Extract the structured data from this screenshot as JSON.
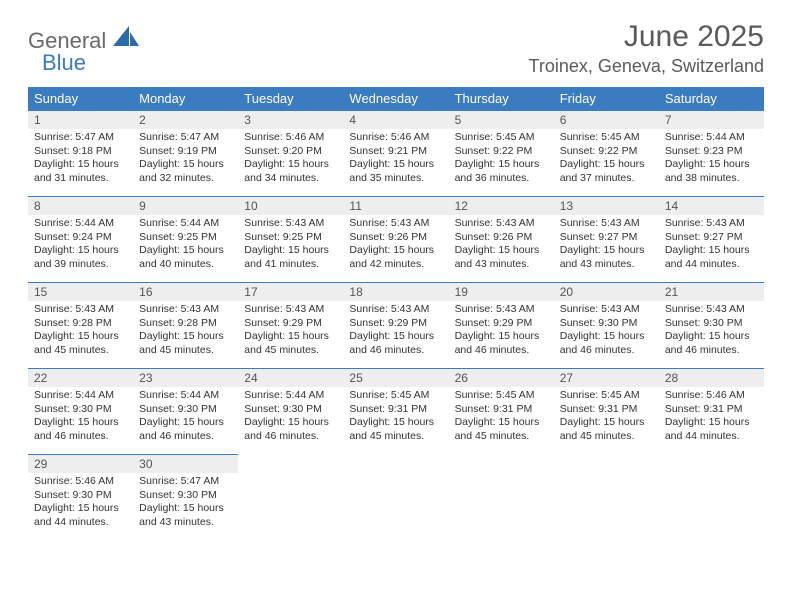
{
  "brand": {
    "word1": "General",
    "word2": "Blue"
  },
  "title": "June 2025",
  "location": "Troinex, Geneva, Switzerland",
  "colors": {
    "header_bg": "#3b7bbf",
    "header_text": "#ffffff",
    "daynum_bg": "#eeeeee",
    "border": "#3b7bbf",
    "text": "#333333",
    "title_text": "#5a5a5a"
  },
  "weekdays": [
    "Sunday",
    "Monday",
    "Tuesday",
    "Wednesday",
    "Thursday",
    "Friday",
    "Saturday"
  ],
  "days": [
    {
      "num": "1",
      "sunrise": "Sunrise: 5:47 AM",
      "sunset": "Sunset: 9:18 PM",
      "day1": "Daylight: 15 hours",
      "day2": "and 31 minutes."
    },
    {
      "num": "2",
      "sunrise": "Sunrise: 5:47 AM",
      "sunset": "Sunset: 9:19 PM",
      "day1": "Daylight: 15 hours",
      "day2": "and 32 minutes."
    },
    {
      "num": "3",
      "sunrise": "Sunrise: 5:46 AM",
      "sunset": "Sunset: 9:20 PM",
      "day1": "Daylight: 15 hours",
      "day2": "and 34 minutes."
    },
    {
      "num": "4",
      "sunrise": "Sunrise: 5:46 AM",
      "sunset": "Sunset: 9:21 PM",
      "day1": "Daylight: 15 hours",
      "day2": "and 35 minutes."
    },
    {
      "num": "5",
      "sunrise": "Sunrise: 5:45 AM",
      "sunset": "Sunset: 9:22 PM",
      "day1": "Daylight: 15 hours",
      "day2": "and 36 minutes."
    },
    {
      "num": "6",
      "sunrise": "Sunrise: 5:45 AM",
      "sunset": "Sunset: 9:22 PM",
      "day1": "Daylight: 15 hours",
      "day2": "and 37 minutes."
    },
    {
      "num": "7",
      "sunrise": "Sunrise: 5:44 AM",
      "sunset": "Sunset: 9:23 PM",
      "day1": "Daylight: 15 hours",
      "day2": "and 38 minutes."
    },
    {
      "num": "8",
      "sunrise": "Sunrise: 5:44 AM",
      "sunset": "Sunset: 9:24 PM",
      "day1": "Daylight: 15 hours",
      "day2": "and 39 minutes."
    },
    {
      "num": "9",
      "sunrise": "Sunrise: 5:44 AM",
      "sunset": "Sunset: 9:25 PM",
      "day1": "Daylight: 15 hours",
      "day2": "and 40 minutes."
    },
    {
      "num": "10",
      "sunrise": "Sunrise: 5:43 AM",
      "sunset": "Sunset: 9:25 PM",
      "day1": "Daylight: 15 hours",
      "day2": "and 41 minutes."
    },
    {
      "num": "11",
      "sunrise": "Sunrise: 5:43 AM",
      "sunset": "Sunset: 9:26 PM",
      "day1": "Daylight: 15 hours",
      "day2": "and 42 minutes."
    },
    {
      "num": "12",
      "sunrise": "Sunrise: 5:43 AM",
      "sunset": "Sunset: 9:26 PM",
      "day1": "Daylight: 15 hours",
      "day2": "and 43 minutes."
    },
    {
      "num": "13",
      "sunrise": "Sunrise: 5:43 AM",
      "sunset": "Sunset: 9:27 PM",
      "day1": "Daylight: 15 hours",
      "day2": "and 43 minutes."
    },
    {
      "num": "14",
      "sunrise": "Sunrise: 5:43 AM",
      "sunset": "Sunset: 9:27 PM",
      "day1": "Daylight: 15 hours",
      "day2": "and 44 minutes."
    },
    {
      "num": "15",
      "sunrise": "Sunrise: 5:43 AM",
      "sunset": "Sunset: 9:28 PM",
      "day1": "Daylight: 15 hours",
      "day2": "and 45 minutes."
    },
    {
      "num": "16",
      "sunrise": "Sunrise: 5:43 AM",
      "sunset": "Sunset: 9:28 PM",
      "day1": "Daylight: 15 hours",
      "day2": "and 45 minutes."
    },
    {
      "num": "17",
      "sunrise": "Sunrise: 5:43 AM",
      "sunset": "Sunset: 9:29 PM",
      "day1": "Daylight: 15 hours",
      "day2": "and 45 minutes."
    },
    {
      "num": "18",
      "sunrise": "Sunrise: 5:43 AM",
      "sunset": "Sunset: 9:29 PM",
      "day1": "Daylight: 15 hours",
      "day2": "and 46 minutes."
    },
    {
      "num": "19",
      "sunrise": "Sunrise: 5:43 AM",
      "sunset": "Sunset: 9:29 PM",
      "day1": "Daylight: 15 hours",
      "day2": "and 46 minutes."
    },
    {
      "num": "20",
      "sunrise": "Sunrise: 5:43 AM",
      "sunset": "Sunset: 9:30 PM",
      "day1": "Daylight: 15 hours",
      "day2": "and 46 minutes."
    },
    {
      "num": "21",
      "sunrise": "Sunrise: 5:43 AM",
      "sunset": "Sunset: 9:30 PM",
      "day1": "Daylight: 15 hours",
      "day2": "and 46 minutes."
    },
    {
      "num": "22",
      "sunrise": "Sunrise: 5:44 AM",
      "sunset": "Sunset: 9:30 PM",
      "day1": "Daylight: 15 hours",
      "day2": "and 46 minutes."
    },
    {
      "num": "23",
      "sunrise": "Sunrise: 5:44 AM",
      "sunset": "Sunset: 9:30 PM",
      "day1": "Daylight: 15 hours",
      "day2": "and 46 minutes."
    },
    {
      "num": "24",
      "sunrise": "Sunrise: 5:44 AM",
      "sunset": "Sunset: 9:30 PM",
      "day1": "Daylight: 15 hours",
      "day2": "and 46 minutes."
    },
    {
      "num": "25",
      "sunrise": "Sunrise: 5:45 AM",
      "sunset": "Sunset: 9:31 PM",
      "day1": "Daylight: 15 hours",
      "day2": "and 45 minutes."
    },
    {
      "num": "26",
      "sunrise": "Sunrise: 5:45 AM",
      "sunset": "Sunset: 9:31 PM",
      "day1": "Daylight: 15 hours",
      "day2": "and 45 minutes."
    },
    {
      "num": "27",
      "sunrise": "Sunrise: 5:45 AM",
      "sunset": "Sunset: 9:31 PM",
      "day1": "Daylight: 15 hours",
      "day2": "and 45 minutes."
    },
    {
      "num": "28",
      "sunrise": "Sunrise: 5:46 AM",
      "sunset": "Sunset: 9:31 PM",
      "day1": "Daylight: 15 hours",
      "day2": "and 44 minutes."
    },
    {
      "num": "29",
      "sunrise": "Sunrise: 5:46 AM",
      "sunset": "Sunset: 9:30 PM",
      "day1": "Daylight: 15 hours",
      "day2": "and 44 minutes."
    },
    {
      "num": "30",
      "sunrise": "Sunrise: 5:47 AM",
      "sunset": "Sunset: 9:30 PM",
      "day1": "Daylight: 15 hours",
      "day2": "and 43 minutes."
    }
  ]
}
